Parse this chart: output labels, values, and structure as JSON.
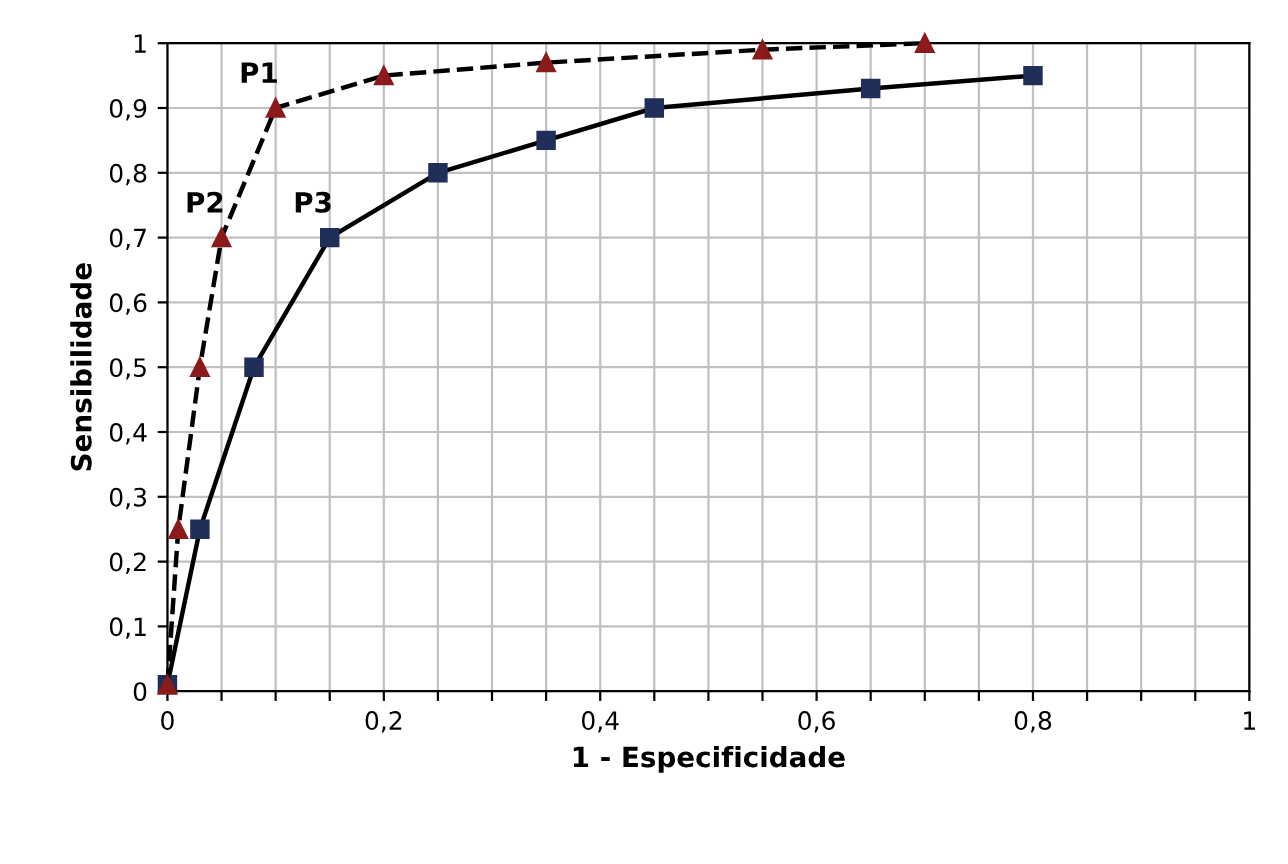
{
  "chart_data": {
    "type": "line",
    "xlabel": "1 - Especificidade",
    "ylabel": "Sensibilidade",
    "xlim": [
      0,
      1
    ],
    "ylim": [
      0,
      1
    ],
    "xticks": [
      0,
      {
        "value": 0.05,
        "label": null
      },
      {
        "value": 0.1,
        "label": null
      },
      {
        "value": 0.15,
        "label": null
      },
      {
        "value": 0.2,
        "label": "0,2"
      },
      {
        "value": 0.25,
        "label": null
      },
      {
        "value": 0.3,
        "label": null
      },
      {
        "value": 0.35,
        "label": null
      },
      {
        "value": 0.4,
        "label": "0,4"
      },
      {
        "value": 0.45,
        "label": null
      },
      {
        "value": 0.5,
        "label": null
      },
      {
        "value": 0.55,
        "label": null
      },
      {
        "value": 0.6,
        "label": "0,6"
      },
      {
        "value": 0.65,
        "label": null
      },
      {
        "value": 0.7,
        "label": null
      },
      {
        "value": 0.75,
        "label": null
      },
      {
        "value": 0.8,
        "label": "0,8"
      },
      {
        "value": 0.85,
        "label": null
      },
      {
        "value": 0.9,
        "label": null
      },
      {
        "value": 0.95,
        "label": null
      },
      1
    ],
    "yticks": [
      0,
      {
        "value": 0.1,
        "label": "0,1"
      },
      {
        "value": 0.2,
        "label": "0,2"
      },
      {
        "value": 0.3,
        "label": "0,3"
      },
      {
        "value": 0.4,
        "label": "0,4"
      },
      {
        "value": 0.5,
        "label": "0,5"
      },
      {
        "value": 0.6,
        "label": "0,6"
      },
      {
        "value": 0.7,
        "label": "0,7"
      },
      {
        "value": 0.8,
        "label": "0,8"
      },
      {
        "value": 0.9,
        "label": "0,9"
      },
      1
    ],
    "grid": true,
    "legend": false,
    "series": [
      {
        "color": "#8b1a1a",
        "marker": "triangle",
        "line_style": "dashed",
        "x": [
          0,
          0.01,
          0.03,
          0.05,
          0.1,
          0.2,
          0.35,
          0.55,
          0.7
        ],
        "values": [
          0.01,
          0.25,
          0.5,
          0.7,
          0.9,
          0.95,
          0.97,
          0.99,
          1.0
        ]
      },
      {
        "color": "#1f2f5a",
        "marker": "square",
        "line_style": "solid",
        "x": [
          0,
          0.03,
          0.08,
          0.15,
          0.25,
          0.35,
          0.45,
          0.65,
          0.8
        ],
        "values": [
          0.01,
          0.25,
          0.5,
          0.7,
          0.8,
          0.85,
          0.9,
          0.93,
          0.95
        ]
      }
    ],
    "annotations": [
      {
        "text": "P1",
        "x": 0.1,
        "y": 0.9
      },
      {
        "text": "P2",
        "x": 0.05,
        "y": 0.7
      },
      {
        "text": "P3",
        "x": 0.15,
        "y": 0.7
      }
    ]
  }
}
